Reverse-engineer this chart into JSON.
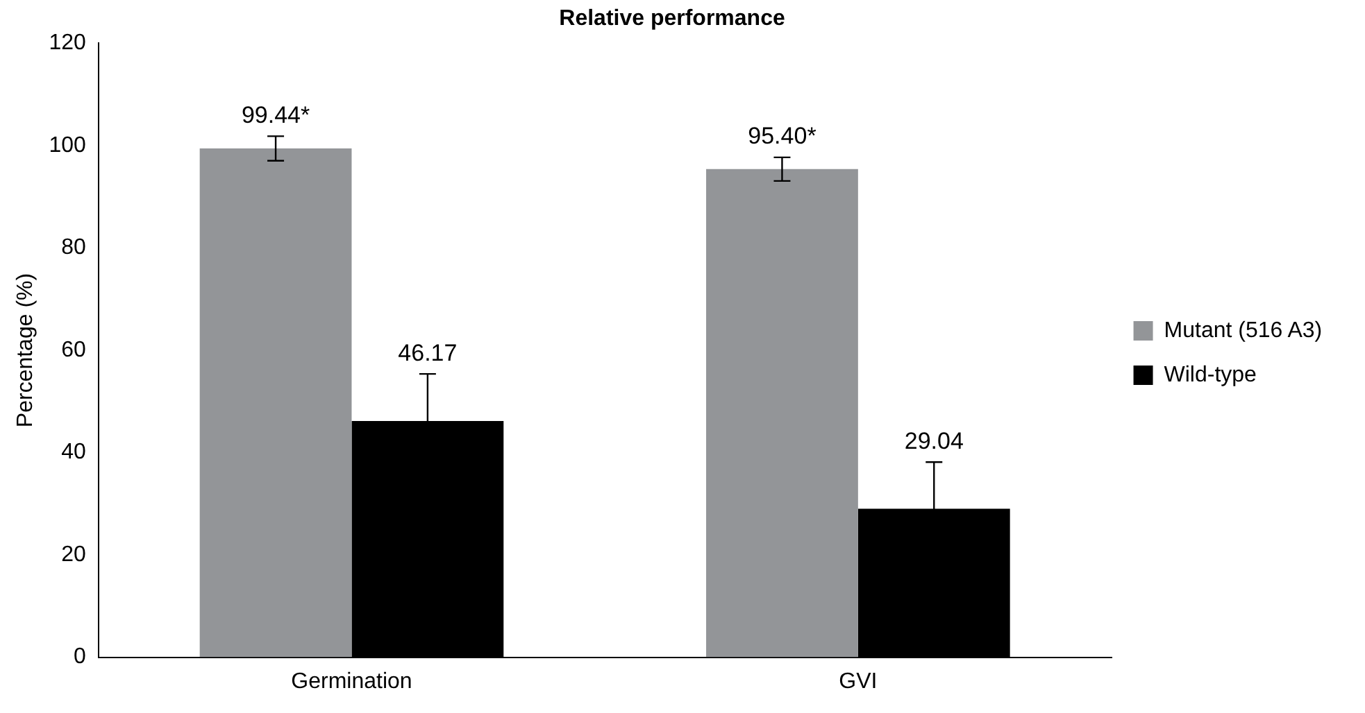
{
  "chart_data": {
    "type": "bar",
    "title": "Relative performance",
    "ylabel": "Percentage (%)",
    "categories": [
      "Germination",
      "GVI"
    ],
    "series": [
      {
        "name": "Mutant (516 A3)",
        "color": "#939598",
        "values": [
          99.44,
          95.4
        ],
        "errors": [
          2.4,
          2.3
        ],
        "value_labels": [
          "99.44*",
          "95.40*"
        ]
      },
      {
        "name": "Wild-type",
        "color": "#000000",
        "values": [
          46.17,
          29.04
        ],
        "errors": [
          9.2,
          9.1
        ],
        "value_labels": [
          "46.17",
          "29.04"
        ]
      }
    ],
    "ylim": [
      0,
      120
    ],
    "yticks": [
      0,
      20,
      40,
      60,
      80,
      100,
      120
    ],
    "grid": false,
    "legend": "right"
  }
}
